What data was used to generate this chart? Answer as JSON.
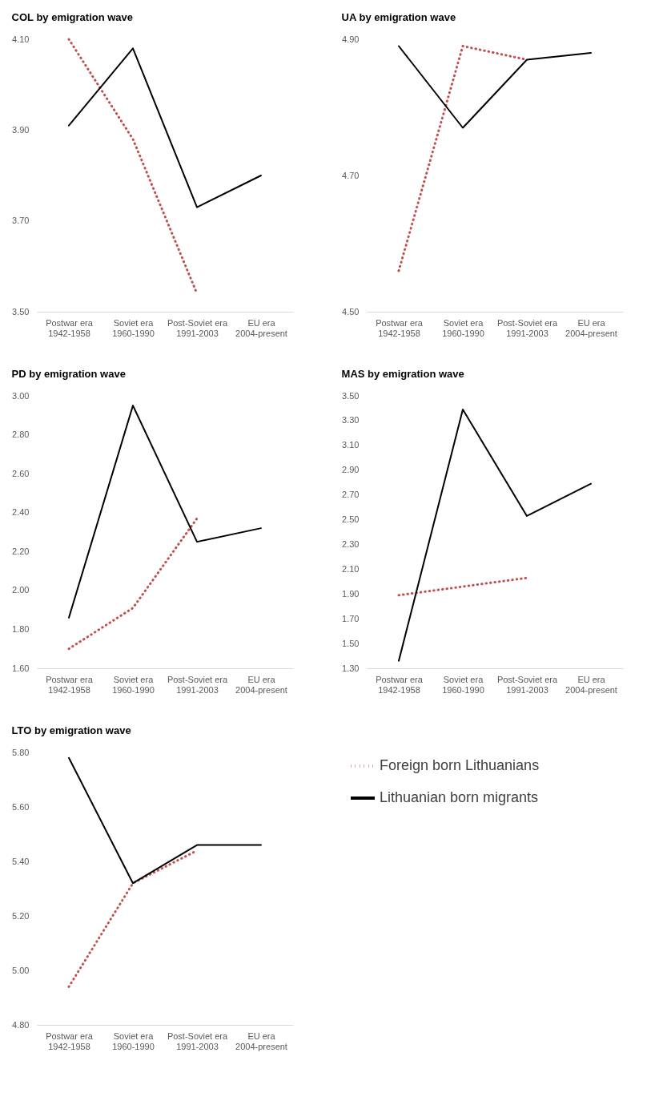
{
  "chart_data": [
    {
      "type": "line",
      "title": "COL by emigration wave",
      "categories": [
        "Postwar era\n1942-1958",
        "Soviet era\n1960-1990",
        "Post-Soviet era\n1991-2003",
        "EU era\n2004-present"
      ],
      "ylim": [
        3.5,
        4.1
      ],
      "yticks": [
        {
          "value": 3.5,
          "label": "3.50"
        },
        {
          "value": 3.7,
          "label": "3.70"
        },
        {
          "value": 3.9,
          "label": "3.90"
        },
        {
          "value": 4.1,
          "label": "4.10"
        }
      ],
      "grid": false,
      "series": [
        {
          "color": "#c0504d",
          "line_style": "dotted",
          "values": [
            4.1,
            3.88,
            3.54,
            null
          ]
        },
        {
          "color": "#000000",
          "line_style": "solid",
          "values": [
            3.91,
            4.08,
            3.73,
            3.8
          ]
        }
      ]
    },
    {
      "type": "line",
      "title": "UA by emigration wave",
      "categories": [
        "Postwar era\n1942-1958",
        "Soviet era\n1960-1990",
        "Post-Soviet era\n1991-2003",
        "EU era\n2004-present"
      ],
      "ylim": [
        4.5,
        4.9
      ],
      "yticks": [
        {
          "value": 4.5,
          "label": "4.50"
        },
        {
          "value": 4.7,
          "label": "4.70"
        },
        {
          "value": 4.9,
          "label": "4.90"
        }
      ],
      "grid": false,
      "series": [
        {
          "color": "#c0504d",
          "line_style": "dotted",
          "values": [
            4.56,
            4.89,
            4.87,
            null
          ]
        },
        {
          "color": "#000000",
          "line_style": "solid",
          "values": [
            4.89,
            4.77,
            4.87,
            4.88
          ]
        }
      ]
    },
    {
      "type": "line",
      "title": "PD by emigration wave",
      "categories": [
        "Postwar era\n1942-1958",
        "Soviet era\n1960-1990",
        "Post-Soviet era\n1991-2003",
        "EU era\n2004-present"
      ],
      "ylim": [
        1.6,
        3.0
      ],
      "yticks": [
        {
          "value": 1.6,
          "label": "1.60"
        },
        {
          "value": 1.8,
          "label": "1.80"
        },
        {
          "value": 2.0,
          "label": "2.00"
        },
        {
          "value": 2.2,
          "label": "2.20"
        },
        {
          "value": 2.4,
          "label": "2.40"
        },
        {
          "value": 2.6,
          "label": "2.60"
        },
        {
          "value": 2.8,
          "label": "2.80"
        },
        {
          "value": 3.0,
          "label": "3.00"
        }
      ],
      "grid": false,
      "series": [
        {
          "color": "#c0504d",
          "line_style": "dotted",
          "values": [
            1.7,
            1.91,
            2.37,
            null
          ]
        },
        {
          "color": "#000000",
          "line_style": "solid",
          "values": [
            1.86,
            2.95,
            2.25,
            2.32
          ]
        }
      ]
    },
    {
      "type": "line",
      "title": "MAS by emigration wave",
      "categories": [
        "Postwar era\n1942-1958",
        "Soviet era\n1960-1990",
        "Post-Soviet era\n1991-2003",
        "EU era\n2004-present"
      ],
      "ylim": [
        1.3,
        3.5
      ],
      "yticks": [
        {
          "value": 1.3,
          "label": "1.30"
        },
        {
          "value": 1.5,
          "label": "1.50"
        },
        {
          "value": 1.7,
          "label": "1.70"
        },
        {
          "value": 1.9,
          "label": "1.90"
        },
        {
          "value": 2.1,
          "label": "2.10"
        },
        {
          "value": 2.3,
          "label": "2.30"
        },
        {
          "value": 2.5,
          "label": "2.50"
        },
        {
          "value": 2.7,
          "label": "2.70"
        },
        {
          "value": 2.9,
          "label": "2.90"
        },
        {
          "value": 3.1,
          "label": "3.10"
        },
        {
          "value": 3.3,
          "label": "3.30"
        },
        {
          "value": 3.5,
          "label": "3.50"
        }
      ],
      "grid": false,
      "series": [
        {
          "color": "#c0504d",
          "line_style": "dotted",
          "values": [
            1.89,
            1.96,
            2.03,
            null
          ]
        },
        {
          "color": "#000000",
          "line_style": "solid",
          "values": [
            1.36,
            3.39,
            2.53,
            2.79
          ]
        }
      ]
    },
    {
      "type": "line",
      "title": "LTO by emigration wave",
      "categories": [
        "Postwar era\n1942-1958",
        "Soviet era\n1960-1990",
        "Post-Soviet era\n1991-2003",
        "EU era\n2004-present"
      ],
      "ylim": [
        4.8,
        5.8
      ],
      "yticks": [
        {
          "value": 4.8,
          "label": "4.80"
        },
        {
          "value": 5.0,
          "label": "5.00"
        },
        {
          "value": 5.2,
          "label": "5.20"
        },
        {
          "value": 5.4,
          "label": "5.40"
        },
        {
          "value": 5.6,
          "label": "5.60"
        },
        {
          "value": 5.8,
          "label": "5.80"
        }
      ],
      "grid": false,
      "legend": "right",
      "series": [
        {
          "name": "Foreign born Lithuanians",
          "color": "#c0504d",
          "line_style": "dotted",
          "values": [
            4.94,
            5.32,
            5.44,
            null
          ]
        },
        {
          "name": "Lithuanian born migrants",
          "color": "#000000",
          "line_style": "solid",
          "values": [
            5.78,
            5.32,
            5.46,
            5.46
          ]
        }
      ]
    }
  ]
}
